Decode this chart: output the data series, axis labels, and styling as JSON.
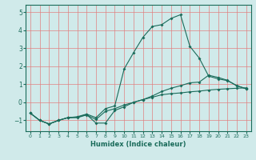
{
  "title": "",
  "xlabel": "Humidex (Indice chaleur)",
  "ylabel": "",
  "bg_color": "#d0eaea",
  "grid_color": "#e08080",
  "line_color": "#1a6b5a",
  "tick_color": "#1a6b5a",
  "xlim": [
    -0.5,
    23.5
  ],
  "ylim": [
    -1.6,
    5.4
  ],
  "xticks": [
    0,
    1,
    2,
    3,
    4,
    5,
    6,
    7,
    8,
    9,
    10,
    11,
    12,
    13,
    14,
    15,
    16,
    17,
    18,
    19,
    20,
    21,
    22,
    23
  ],
  "yticks": [
    -1,
    0,
    1,
    2,
    3,
    4,
    5
  ],
  "line1_x": [
    0,
    1,
    2,
    3,
    4,
    5,
    6,
    7,
    8,
    9,
    10,
    11,
    12,
    13,
    14,
    15,
    16,
    17,
    18,
    19,
    20,
    21,
    22,
    23
  ],
  "line1_y": [
    -0.6,
    -1.0,
    -1.2,
    -1.0,
    -0.85,
    -0.85,
    -0.7,
    -0.95,
    -0.5,
    -0.35,
    -0.15,
    0.0,
    0.15,
    0.28,
    0.42,
    0.48,
    0.52,
    0.58,
    0.62,
    0.68,
    0.72,
    0.75,
    0.78,
    0.8
  ],
  "line2_x": [
    0,
    1,
    2,
    3,
    4,
    5,
    6,
    7,
    8,
    9,
    10,
    11,
    12,
    13,
    14,
    15,
    16,
    17,
    18,
    19,
    20,
    21,
    22,
    23
  ],
  "line2_y": [
    -0.6,
    -1.0,
    -1.2,
    -1.0,
    -0.85,
    -0.8,
    -0.65,
    -0.85,
    -0.35,
    -0.2,
    1.85,
    2.75,
    3.6,
    4.2,
    4.3,
    4.65,
    4.85,
    3.1,
    2.45,
    1.45,
    1.3,
    1.2,
    0.92,
    0.75
  ],
  "line3_x": [
    0,
    1,
    2,
    3,
    4,
    5,
    6,
    7,
    8,
    9,
    10,
    11,
    12,
    13,
    14,
    15,
    16,
    17,
    18,
    19,
    20,
    21,
    22,
    23
  ],
  "line3_y": [
    -0.6,
    -1.0,
    -1.2,
    -1.0,
    -0.85,
    -0.82,
    -0.68,
    -1.15,
    -1.15,
    -0.45,
    -0.25,
    0.0,
    0.15,
    0.35,
    0.6,
    0.78,
    0.92,
    1.08,
    1.12,
    1.5,
    1.38,
    1.22,
    0.92,
    0.75
  ]
}
